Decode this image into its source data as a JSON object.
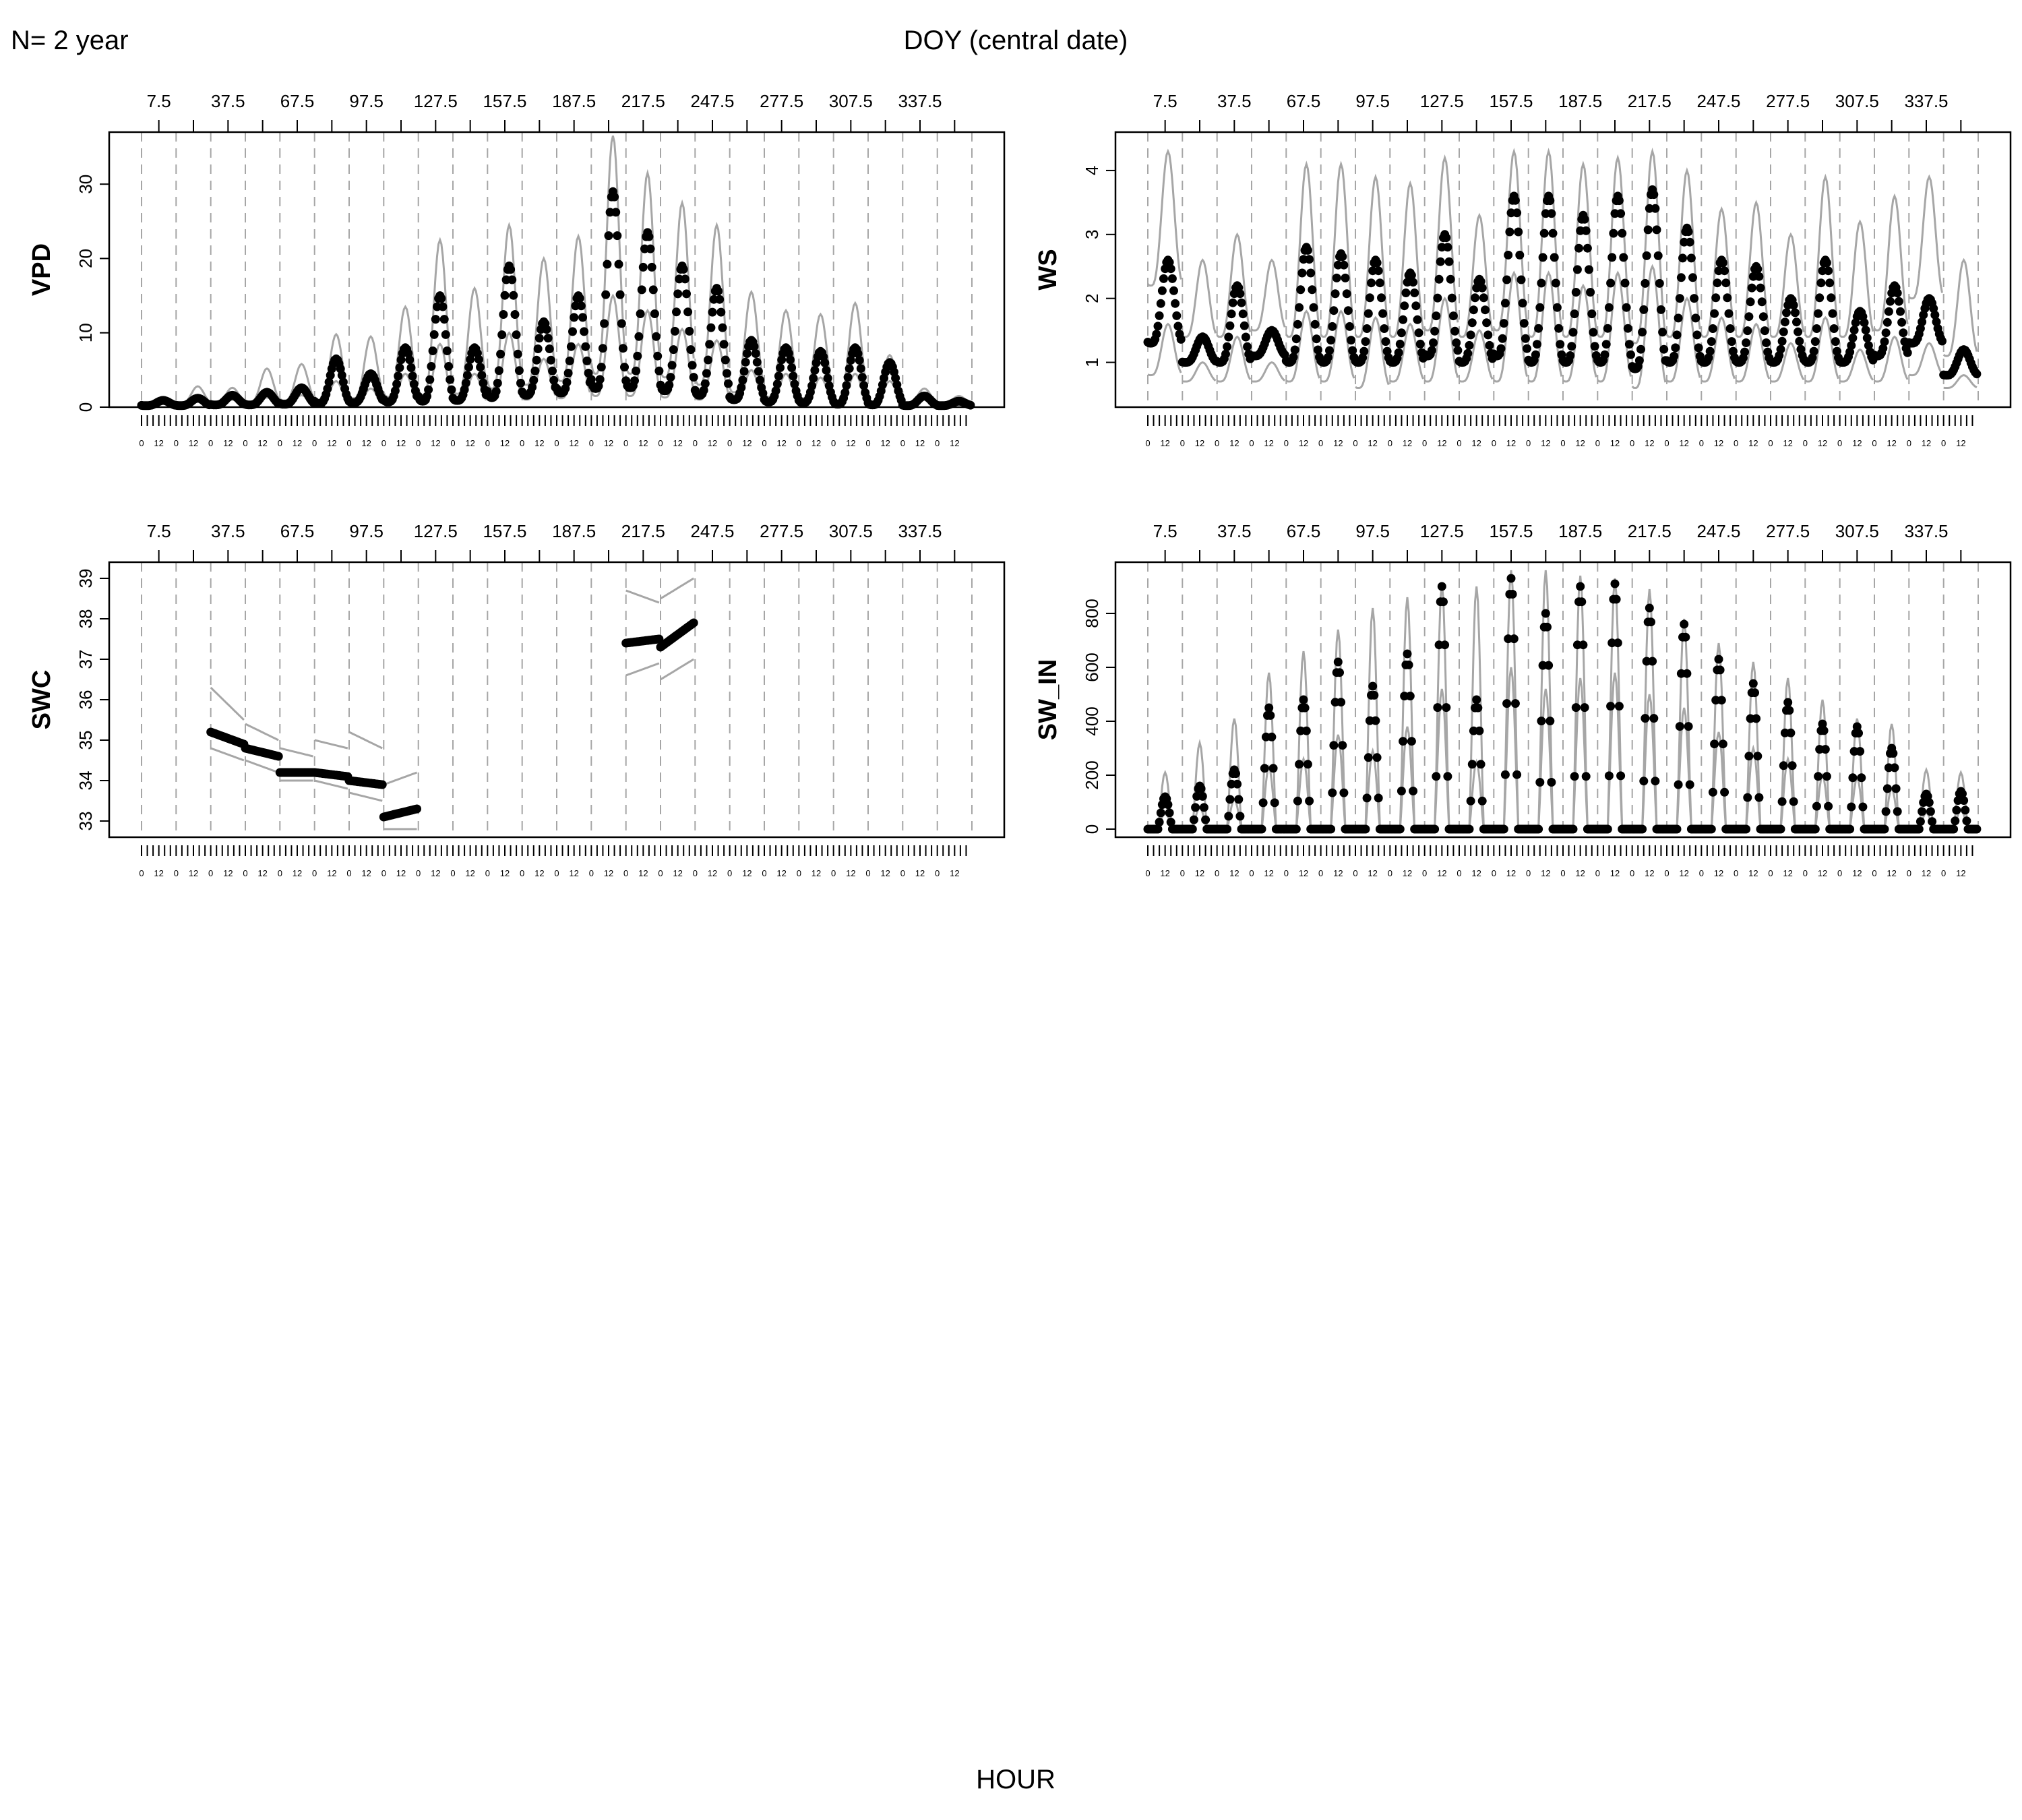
{
  "header": {
    "n_label": "N= 2 year",
    "top_axis_title": "DOY (central date)",
    "bottom_axis_title": "HOUR"
  },
  "style": {
    "point_color": "#000000",
    "band_color": "#a6a6a6",
    "grid_color": "#a6a6a6",
    "frame_color": "#000000"
  },
  "chart_data": [
    {
      "type": "scatter",
      "ylabel": "VPD",
      "ylim": [
        0,
        37
      ],
      "yticks": [
        0,
        10,
        20,
        30
      ],
      "x_name": "hour of day within each 15-day DOY window",
      "doy_windows": [
        7.5,
        22.5,
        37.5,
        52.5,
        67.5,
        82.5,
        97.5,
        112.5,
        127.5,
        142.5,
        157.5,
        172.5,
        187.5,
        202.5,
        217.5,
        232.5,
        247.5,
        262.5,
        277.5,
        292.5,
        307.5,
        322.5,
        337.5,
        352.5
      ],
      "top_tick_labels": [
        "7.5",
        "37.5",
        "67.5",
        "97.5",
        "127.5",
        "157.5",
        "187.5",
        "217.5",
        "247.5",
        "277.5",
        "307.5",
        "337.5"
      ],
      "hour_tick_labels": [
        "0",
        "12"
      ],
      "diurnal_model": "cosine",
      "peak_hour": 15,
      "night_hours": [],
      "series": [
        {
          "role": "median",
          "values_by_window": {
            "min": [
              0.2,
              0.2,
              0.3,
              0.3,
              0.4,
              0.5,
              0.6,
              0.7,
              0.8,
              0.9,
              1.3,
              1.6,
              1.9,
              2.5,
              2.6,
              2.2,
              1.6,
              1.0,
              0.7,
              0.6,
              0.4,
              0.3,
              0.2,
              0.2
            ],
            "max": [
              0.9,
              1.2,
              1.6,
              2.0,
              2.6,
              6.5,
              4.5,
              8.0,
              15.0,
              8.0,
              19.0,
              11.5,
              15.0,
              29.0,
              23.5,
              19.0,
              16.0,
              9.0,
              8.0,
              7.5,
              8.0,
              6.0,
              1.5,
              0.8
            ]
          }
        },
        {
          "role": "lower",
          "values_by_window": {
            "min": [
              0.1,
              0.1,
              0.2,
              0.2,
              0.2,
              0.3,
              0.3,
              0.4,
              0.5,
              0.5,
              0.8,
              1.0,
              1.2,
              1.5,
              1.5,
              1.3,
              1.0,
              0.6,
              0.4,
              0.3,
              0.2,
              0.2,
              0.1,
              0.1
            ],
            "max": [
              0.6,
              0.8,
              1.0,
              1.3,
              1.6,
              3.5,
              2.5,
              4.5,
              8.5,
              4.5,
              10.0,
              6.5,
              8.5,
              15.0,
              13.0,
              10.5,
              9.0,
              5.0,
              4.5,
              4.0,
              4.5,
              3.5,
              1.0,
              0.5
            ]
          }
        },
        {
          "role": "upper",
          "values_by_window": {
            "min": [
              0.4,
              0.5,
              0.6,
              0.7,
              0.9,
              1.0,
              1.2,
              1.4,
              1.6,
              1.8,
              2.5,
              3.0,
              3.5,
              4.5,
              4.5,
              4.0,
              3.0,
              2.0,
              1.4,
              1.2,
              0.9,
              0.7,
              0.5,
              0.4
            ],
            "max": [
              1.4,
              2.8,
              2.6,
              5.2,
              5.8,
              9.8,
              9.5,
              13.5,
              22.5,
              16.0,
              24.5,
              20.0,
              23.0,
              36.5,
              31.5,
              27.5,
              24.5,
              15.5,
              13.0,
              12.5,
              14.0,
              7.0,
              2.5,
              1.5
            ]
          }
        }
      ]
    },
    {
      "type": "scatter",
      "ylabel": "WS",
      "ylim": [
        0.3,
        4.6
      ],
      "yticks": [
        1,
        2,
        3,
        4
      ],
      "x_name": "hour of day within each 15-day DOY window",
      "doy_windows": [
        7.5,
        22.5,
        37.5,
        52.5,
        67.5,
        82.5,
        97.5,
        112.5,
        127.5,
        142.5,
        157.5,
        172.5,
        187.5,
        202.5,
        217.5,
        232.5,
        247.5,
        262.5,
        277.5,
        292.5,
        307.5,
        322.5,
        337.5,
        352.5
      ],
      "top_tick_labels": [
        "7.5",
        "37.5",
        "67.5",
        "97.5",
        "127.5",
        "157.5",
        "187.5",
        "217.5",
        "247.5",
        "277.5",
        "307.5",
        "337.5"
      ],
      "hour_tick_labels": [
        "0",
        "12"
      ],
      "diurnal_model": "cosine",
      "peak_hour": 14,
      "night_hours": [],
      "series": [
        {
          "role": "median",
          "values_by_window": {
            "min": [
              1.3,
              1.0,
              1.0,
              1.1,
              1.0,
              1.0,
              1.0,
              1.0,
              1.1,
              1.0,
              1.1,
              1.0,
              1.0,
              1.0,
              0.9,
              1.0,
              1.0,
              1.0,
              1.0,
              1.0,
              1.0,
              1.1,
              1.3,
              0.8
            ],
            "max": [
              2.6,
              1.4,
              2.2,
              1.5,
              2.8,
              2.7,
              2.6,
              2.4,
              3.0,
              2.3,
              3.6,
              3.6,
              3.3,
              3.6,
              3.7,
              3.1,
              2.6,
              2.5,
              2.0,
              2.6,
              1.8,
              2.2,
              2.0,
              1.2
            ]
          }
        },
        {
          "role": "lower",
          "values_by_window": {
            "min": [
              0.8,
              0.7,
              0.7,
              0.7,
              0.7,
              0.7,
              0.6,
              0.7,
              0.7,
              0.7,
              0.7,
              0.7,
              0.7,
              0.7,
              0.6,
              0.7,
              0.7,
              0.7,
              0.7,
              0.7,
              0.7,
              0.7,
              0.8,
              0.6
            ],
            "max": [
              1.6,
              1.0,
              1.4,
              1.0,
              1.8,
              1.8,
              1.7,
              1.6,
              2.0,
              1.5,
              2.4,
              2.4,
              2.2,
              2.4,
              2.5,
              2.0,
              1.7,
              1.6,
              1.3,
              1.7,
              1.2,
              1.4,
              1.3,
              0.8
            ]
          }
        },
        {
          "role": "upper",
          "values_by_window": {
            "min": [
              2.2,
              1.4,
              1.4,
              1.5,
              1.4,
              1.4,
              1.4,
              1.4,
              1.5,
              1.4,
              1.5,
              1.4,
              1.4,
              1.4,
              1.3,
              1.4,
              1.4,
              1.4,
              1.4,
              1.4,
              1.4,
              1.5,
              2.0,
              1.1
            ],
            "max": [
              4.3,
              2.6,
              3.0,
              2.6,
              4.1,
              4.1,
              3.9,
              3.8,
              4.2,
              3.3,
              4.3,
              4.3,
              4.1,
              4.2,
              4.3,
              4.0,
              3.4,
              3.5,
              3.0,
              3.9,
              3.2,
              3.6,
              3.9,
              2.6
            ]
          }
        }
      ]
    },
    {
      "type": "scatter",
      "ylabel": "SWC",
      "ylim": [
        32.6,
        39.4
      ],
      "yticks": [
        33,
        34,
        35,
        36,
        37,
        38,
        39
      ],
      "x_name": "hour of day within each 15-day DOY window",
      "doy_windows": [
        7.5,
        22.5,
        37.5,
        52.5,
        67.5,
        82.5,
        97.5,
        112.5,
        127.5,
        142.5,
        157.5,
        172.5,
        187.5,
        202.5,
        217.5,
        232.5,
        247.5,
        262.5,
        277.5,
        292.5,
        307.5,
        322.5,
        337.5,
        352.5
      ],
      "top_tick_labels": [
        "7.5",
        "37.5",
        "67.5",
        "97.5",
        "127.5",
        "157.5",
        "187.5",
        "217.5",
        "247.5",
        "277.5",
        "307.5",
        "337.5"
      ],
      "hour_tick_labels": [
        "0",
        "12"
      ],
      "diurnal_model": "linear",
      "peak_hour": 0,
      "night_hours": [],
      "series": [
        {
          "role": "median",
          "values_by_window": {
            "start": [
              null,
              null,
              35.2,
              34.8,
              34.2,
              34.2,
              34.0,
              33.1,
              null,
              null,
              null,
              null,
              null,
              null,
              37.4,
              37.3,
              null,
              null,
              null,
              null,
              null,
              null,
              null,
              null
            ],
            "end": [
              null,
              null,
              34.9,
              34.6,
              34.2,
              34.1,
              33.9,
              33.3,
              null,
              null,
              null,
              null,
              null,
              null,
              37.5,
              37.9,
              null,
              null,
              null,
              null,
              null,
              null,
              null,
              null
            ]
          }
        },
        {
          "role": "lower",
          "values_by_window": {
            "start": [
              null,
              null,
              34.8,
              34.5,
              34.0,
              34.0,
              33.7,
              32.8,
              null,
              null,
              null,
              null,
              null,
              null,
              36.6,
              36.5,
              null,
              null,
              null,
              null,
              null,
              null,
              null,
              null
            ],
            "end": [
              null,
              null,
              34.5,
              34.2,
              34.0,
              33.8,
              33.5,
              32.8,
              null,
              null,
              null,
              null,
              null,
              null,
              36.9,
              37.0,
              null,
              null,
              null,
              null,
              null,
              null,
              null,
              null
            ]
          }
        },
        {
          "role": "upper",
          "values_by_window": {
            "start": [
              null,
              null,
              36.3,
              35.4,
              34.8,
              35.0,
              35.2,
              33.9,
              null,
              null,
              null,
              null,
              null,
              null,
              38.7,
              38.5,
              null,
              null,
              null,
              null,
              null,
              null,
              null,
              null
            ],
            "end": [
              null,
              null,
              35.5,
              35.0,
              34.6,
              34.8,
              34.8,
              34.2,
              null,
              null,
              null,
              null,
              null,
              null,
              38.4,
              39.0,
              null,
              null,
              null,
              null,
              null,
              null,
              null,
              null
            ]
          }
        }
      ]
    },
    {
      "type": "scatter",
      "ylabel": "SW_IN",
      "ylim": [
        -30,
        990
      ],
      "yticks": [
        0,
        200,
        400,
        600,
        800
      ],
      "x_name": "hour of day within each 15-day DOY window",
      "doy_windows": [
        7.5,
        22.5,
        37.5,
        52.5,
        67.5,
        82.5,
        97.5,
        112.5,
        127.5,
        142.5,
        157.5,
        172.5,
        187.5,
        202.5,
        217.5,
        232.5,
        247.5,
        262.5,
        277.5,
        292.5,
        307.5,
        322.5,
        337.5,
        352.5
      ],
      "top_tick_labels": [
        "7.5",
        "37.5",
        "67.5",
        "97.5",
        "127.5",
        "157.5",
        "187.5",
        "217.5",
        "247.5",
        "277.5",
        "307.5",
        "337.5"
      ],
      "hour_tick_labels": [
        "0",
        "12"
      ],
      "diurnal_model": "daylight",
      "peak_hour": 12.5,
      "night_hours": [
        7,
        17
      ],
      "series": [
        {
          "role": "median",
          "values_by_window": {
            "min": [
              0,
              0,
              0,
              0,
              0,
              0,
              0,
              0,
              0,
              0,
              0,
              0,
              0,
              0,
              0,
              0,
              0,
              0,
              0,
              0,
              0,
              0,
              0,
              0
            ],
            "max": [
              120,
              160,
              220,
              450,
              480,
              620,
              530,
              650,
              900,
              480,
              930,
              800,
              900,
              910,
              820,
              760,
              630,
              540,
              470,
              390,
              380,
              300,
              130,
              140
            ]
          }
        },
        {
          "role": "lower",
          "values_by_window": {
            "min": [
              0,
              0,
              0,
              0,
              0,
              0,
              0,
              0,
              0,
              0,
              0,
              0,
              0,
              0,
              0,
              0,
              0,
              0,
              0,
              0,
              0,
              0,
              0,
              0
            ],
            "max": [
              60,
              80,
              110,
              230,
              260,
              350,
              290,
              380,
              520,
              250,
              600,
              520,
              560,
              580,
              500,
              450,
              360,
              300,
              260,
              200,
              190,
              150,
              60,
              70
            ]
          }
        },
        {
          "role": "upper",
          "values_by_window": {
            "min": [
              0,
              0,
              0,
              0,
              0,
              0,
              0,
              0,
              0,
              0,
              0,
              0,
              0,
              0,
              0,
              0,
              0,
              0,
              0,
              0,
              0,
              0,
              0,
              0
            ],
            "max": [
              210,
              320,
              410,
              580,
              660,
              740,
              820,
              860,
              910,
              900,
              960,
              960,
              940,
              930,
              890,
              780,
              690,
              620,
              560,
              480,
              410,
              390,
              220,
              210
            ]
          }
        }
      ]
    }
  ]
}
